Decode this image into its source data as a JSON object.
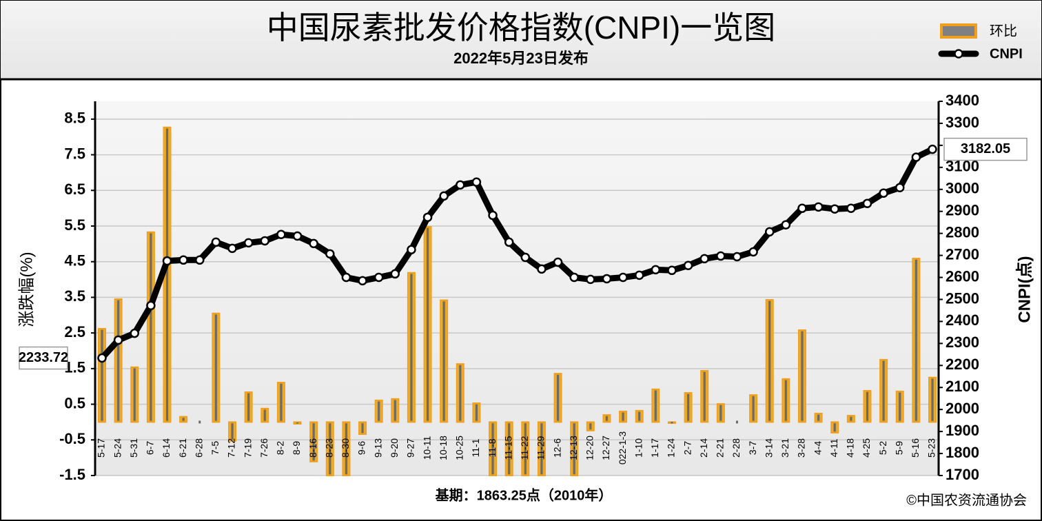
{
  "chart_data": {
    "type": "bar",
    "title": "中国尿素批发价格指数(CNPI)一览图",
    "subtitle": "2022年5月23日发布",
    "ylabel": "涨跌幅(%)",
    "y2label": "CNPI(点)",
    "note": "基期：1863.25点（2010年）",
    "source": "©中国农资流通协会",
    "categories": [
      "5-17",
      "5-24",
      "5-31",
      "6-7",
      "6-14",
      "6-21",
      "6-28",
      "7-5",
      "7-12",
      "7-19",
      "7-26",
      "8-2",
      "8-9",
      "8-16",
      "8-23",
      "8-30",
      "9-6",
      "9-13",
      "9-20",
      "9-27",
      "10-11",
      "10-18",
      "10-25",
      "11-1",
      "11-8",
      "11-15",
      "11-22",
      "11-29",
      "12-6",
      "12-13",
      "12-20",
      "12-27",
      "022-1-3",
      "1-10",
      "1-17",
      "1-24",
      "2-7",
      "2-14",
      "2-21",
      "2-28",
      "3-7",
      "3-14",
      "3-21",
      "3-28",
      "4-4",
      "4-11",
      "4-18",
      "4-25",
      "5-2",
      "5-9",
      "5-16",
      "5-23"
    ],
    "series": [
      {
        "name": "环比",
        "type": "bar",
        "color": "#f0a020",
        "values": [
          2.62,
          3.45,
          1.54,
          5.33,
          8.27,
          0.15,
          0,
          3.05,
          -0.53,
          0.84,
          0.38,
          1.11,
          -0.05,
          -1.11,
          -1.5,
          -1.5,
          -0.34,
          0.61,
          0.65,
          4.19,
          5.48,
          3.42,
          1.63,
          0.53,
          -1.5,
          -1.5,
          -1.5,
          -1.5,
          1.36,
          -1.5,
          -0.24,
          0.2,
          0.3,
          0.32,
          0.92,
          -0.03,
          0.82,
          1.44,
          0.51,
          0,
          0.76,
          3.43,
          1.21,
          2.58,
          0.24,
          -0.3,
          0.18,
          0.88,
          1.75,
          0.86,
          4.59,
          1.25
        ]
      },
      {
        "name": "CNPI",
        "type": "line",
        "axis": "y2",
        "color": "#000000",
        "values": [
          2233.72,
          2315,
          2346,
          2472,
          2675,
          2679,
          2679,
          2760,
          2732,
          2757,
          2766,
          2795,
          2788,
          2754,
          2707,
          2600,
          2585,
          2600,
          2616,
          2726,
          2873,
          2970,
          3020,
          3033,
          2882,
          2760,
          2691,
          2638,
          2669,
          2600,
          2591,
          2594,
          2600,
          2610,
          2635,
          2632,
          2654,
          2685,
          2697,
          2694,
          2716,
          2807,
          2839,
          2914,
          2920,
          2911,
          2914,
          2936,
          2983,
          3008,
          3146,
          3182.05
        ]
      }
    ],
    "ylim": [
      -1.5,
      9
    ],
    "yticks": [
      -1.5,
      -0.5,
      0.5,
      1.5,
      2.5,
      3.5,
      4.5,
      5.5,
      6.5,
      7.5,
      8.5
    ],
    "y2lim": [
      1700,
      3400
    ],
    "y2ticks": [
      1700,
      1800,
      1900,
      2000,
      2100,
      2200,
      2300,
      2400,
      2500,
      2600,
      2700,
      2800,
      2900,
      3000,
      3100,
      3200,
      3300,
      3400
    ],
    "grid": true
  }
}
